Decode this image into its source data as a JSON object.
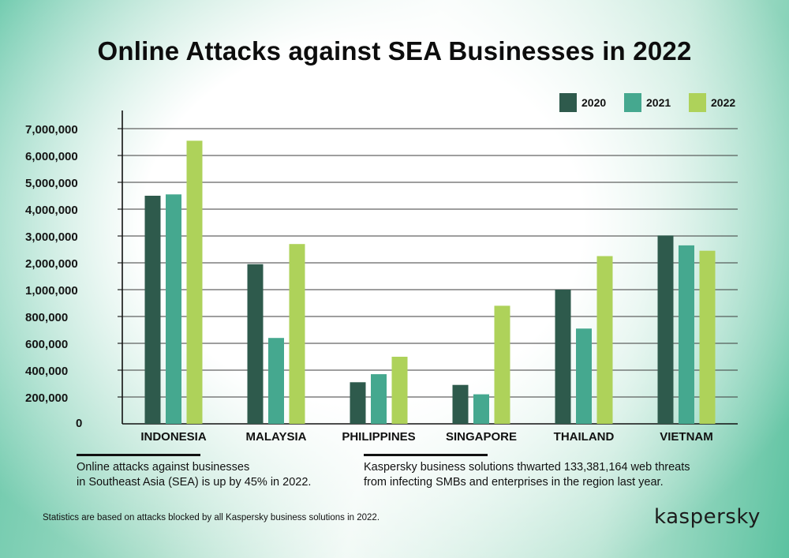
{
  "chart_data": {
    "type": "bar",
    "title": "Online Attacks against SEA Businesses in 2022",
    "categories": [
      "INDONESIA",
      "MALAYSIA",
      "PHILIPPINES",
      "SINGAPORE",
      "THAILAND",
      "VIETNAM"
    ],
    "series": [
      {
        "name": "2020",
        "color": "#2e5a4c",
        "values": [
          4500000,
          1950000,
          310000,
          290000,
          1000000,
          3020000
        ]
      },
      {
        "name": "2021",
        "color": "#45a88f",
        "values": [
          4550000,
          640000,
          370000,
          220000,
          710000,
          2650000
        ]
      },
      {
        "name": "2022",
        "color": "#aed25a",
        "values": [
          6550000,
          2700000,
          500000,
          880000,
          2250000,
          2450000
        ]
      }
    ],
    "yticks": [
      {
        "value": 0,
        "label": "0"
      },
      {
        "value": 200000,
        "label": "200,000"
      },
      {
        "value": 400000,
        "label": "400,000"
      },
      {
        "value": 600000,
        "label": "600,000"
      },
      {
        "value": 800000,
        "label": "800,000"
      },
      {
        "value": 1000000,
        "label": "1,000,000"
      },
      {
        "value": 2000000,
        "label": "2,000,000"
      },
      {
        "value": 3000000,
        "label": "3,000,000"
      },
      {
        "value": 4000000,
        "label": "4,000,000"
      },
      {
        "value": 5000000,
        "label": "5,000,000"
      },
      {
        "value": 6000000,
        "label": "6,000,000"
      },
      {
        "value": 7000000,
        "label": "7,000,000"
      }
    ],
    "y_scale": "non-linear (equal spacing per tick)",
    "ylim": [
      0,
      7000000
    ],
    "grid": true,
    "legend_position": "top-right",
    "xlabel": "",
    "ylabel": ""
  },
  "notes": {
    "left": [
      "Online attacks against businesses",
      "in Southeast Asia (SEA) is up by 45% in 2022."
    ],
    "right": [
      "Kaspersky business solutions thwarted 133,381,164 web threats",
      "from infecting SMBs and enterprises in the region last year."
    ]
  },
  "footnote": "Statistics are based on attacks blocked by all Kaspersky business solutions in 2022.",
  "brand": "kaspersky"
}
